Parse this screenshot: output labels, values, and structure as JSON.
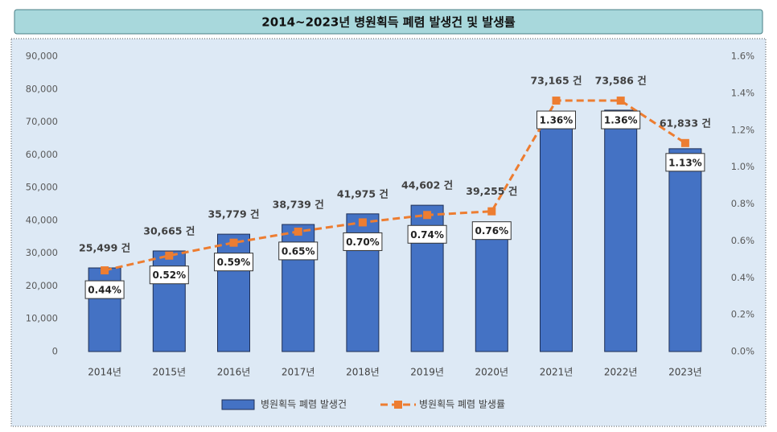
{
  "chart_data": {
    "type": "bar",
    "title": "2014~2023년 병원획득 폐렴 발생건 및 발생률",
    "categories": [
      "2014년",
      "2015년",
      "2016년",
      "2017년",
      "2018년",
      "2019년",
      "2020년",
      "2021년",
      "2022년",
      "2023년"
    ],
    "series": [
      {
        "name": "병원획득 폐렴 발생건",
        "type": "bar",
        "color": "#4472c4",
        "values": [
          25499,
          30665,
          35779,
          38739,
          41975,
          44602,
          39255,
          73165,
          73586,
          61833
        ],
        "value_labels": [
          "25,499 건",
          "30,665 건",
          "35,779 건",
          "38,739 건",
          "41,975 건",
          "44,602 건",
          "39,255 건",
          "73,165 건",
          "73,586 건",
          "61,833 건"
        ]
      },
      {
        "name": "병원획득 폐렴 발생률",
        "type": "line",
        "axis": "y2",
        "color": "#ed7d31",
        "dashed": true,
        "marker": "square",
        "values": [
          0.44,
          0.52,
          0.59,
          0.65,
          0.7,
          0.74,
          0.76,
          1.36,
          1.36,
          1.13
        ],
        "value_labels": [
          "0.44%",
          "0.52%",
          "0.59%",
          "0.65%",
          "0.70%",
          "0.74%",
          "0.76%",
          "1.36%",
          "1.36%",
          "1.13%"
        ]
      }
    ],
    "ylim": [
      0,
      90000
    ],
    "yticks": [
      0,
      {
        "value": 10000,
        "label": "10,000"
      },
      {
        "value": 20000,
        "label": "20,000"
      },
      {
        "value": 30000,
        "label": "30,000"
      },
      {
        "value": 40000,
        "label": "40,000"
      },
      {
        "value": 50000,
        "label": "50,000"
      },
      {
        "value": 60000,
        "label": "60,000"
      },
      {
        "value": 70000,
        "label": "70,000"
      },
      {
        "value": 80000,
        "label": "80,000"
      },
      {
        "value": 90000,
        "label": "90,000"
      }
    ],
    "y2lim": [
      0,
      1.6
    ],
    "y2ticks": [
      {
        "value": 0,
        "label": "0.0%"
      },
      {
        "value": 0.2,
        "label": "0.2%"
      },
      {
        "value": 0.4,
        "label": "0.4%"
      },
      {
        "value": 0.6,
        "label": "0.6%"
      },
      {
        "value": 0.8,
        "label": "0.8%"
      },
      {
        "value": 1.0,
        "label": "1.0%"
      },
      {
        "value": 1.2,
        "label": "1.2%"
      },
      {
        "value": 1.4,
        "label": "1.4%"
      },
      {
        "value": 1.6,
        "label": "1.6%"
      }
    ],
    "grid": false,
    "legend": "bottom"
  }
}
